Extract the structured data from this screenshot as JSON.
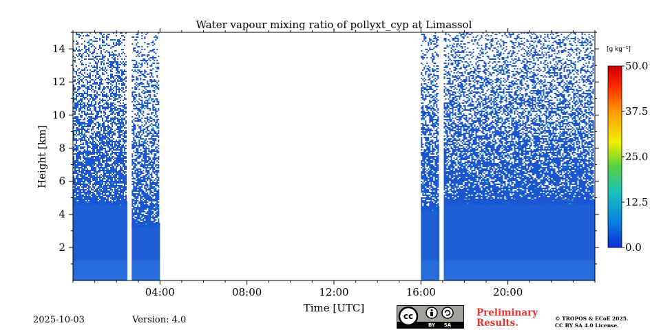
{
  "chart_data": {
    "type": "heatmap",
    "title": "Water vapour mixing ratio of pollyxt_cyp at Limassol",
    "xlabel": "Time [UTC]",
    "ylabel": "Height [km]",
    "xlim_hours": [
      0,
      24
    ],
    "ylim_km": [
      0,
      15
    ],
    "x_ticks": [
      "04:00",
      "08:00",
      "12:00",
      "16:00",
      "20:00"
    ],
    "x_tick_hours": [
      4,
      8,
      12,
      16,
      20
    ],
    "y_ticks": [
      2,
      4,
      6,
      8,
      10,
      12,
      14
    ],
    "colorbar": {
      "label": "[g kg⁻¹]",
      "min": 0.0,
      "max": 50.0,
      "ticks": [
        "0.0",
        "12.5",
        "25.0",
        "37.5",
        "50.0"
      ],
      "tick_values": [
        0,
        12.5,
        25,
        37.5,
        50
      ],
      "colormap": [
        "#0a2fd8",
        "#0b7fe0",
        "#14c2c0",
        "#5ad23c",
        "#f0f000",
        "#ff9900",
        "#ff2200",
        "#c80000"
      ]
    },
    "segments": [
      {
        "start_hour": 0.0,
        "end_hour": 2.5,
        "dense_top_km": 4.8,
        "noise_top_km": 15
      },
      {
        "start_hour": 2.7,
        "end_hour": 4.0,
        "dense_top_km": 3.5,
        "noise_top_km": 15
      },
      {
        "start_hour": 16.0,
        "end_hour": 16.85,
        "dense_top_km": 4.5,
        "noise_top_km": 15
      },
      {
        "start_hour": 17.05,
        "end_hour": 24.0,
        "dense_top_km": 4.9,
        "noise_top_km": 15
      }
    ],
    "gaps_hours": [
      [
        2.5,
        2.7
      ],
      [
        4.0,
        16.0
      ],
      [
        16.85,
        17.05
      ]
    ],
    "typical_value_near_surface": 2.5
  },
  "footer": {
    "date": "2025-10-03",
    "version": "Version: 4.0",
    "preliminary": [
      "Preliminary",
      "Results."
    ],
    "copyright": [
      "© TROPOS & ECoE 2025.",
      "CC BY SA 4.0 License."
    ],
    "cc_labels": [
      "cc",
      "BY",
      "SA"
    ]
  },
  "colors": {
    "preliminary": "#e8332f",
    "cc_badge_bg": "#9ea29b"
  }
}
